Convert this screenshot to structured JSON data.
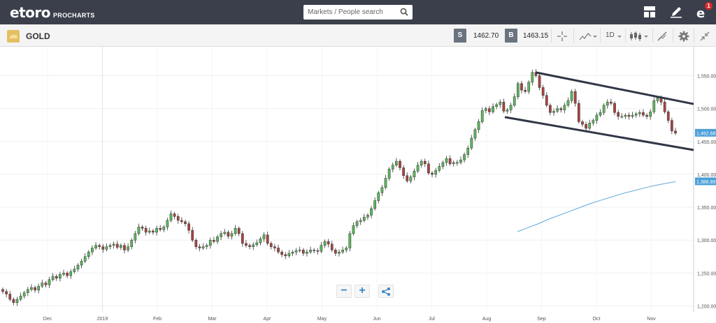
{
  "topbar": {
    "brand": "etoro",
    "product": "PROCHARTS",
    "search_placeholder": "Markets / People search",
    "notification_count": "1",
    "icons": [
      "layout-icon",
      "pencil-icon",
      "profile-icon"
    ]
  },
  "asset": {
    "name": "GOLD",
    "sell_label": "S",
    "sell_price": "1462.70",
    "buy_label": "B",
    "buy_price": "1463.15"
  },
  "toolbar": {
    "timeframe": "1D",
    "icons": [
      "crosshair-icon",
      "compare-icon",
      "timeframe-dropdown",
      "candles-icon",
      "drawing-icon",
      "settings-icon",
      "collapse-icon"
    ]
  },
  "colors": {
    "topbar": "#3a3f4b",
    "bull": "#5cb85c",
    "bear": "#a94442",
    "channel": "#2f3645",
    "sma": "#5fa8dc",
    "price_label": "#4a9fd8"
  },
  "chart_data": {
    "type": "candlestick",
    "title": "",
    "xlabel": "",
    "ylabel": "",
    "ylim": [
      1191,
      1594
    ],
    "x_tick_labels": [
      "Dec",
      "2019",
      "Feb",
      "Mar",
      "Apr",
      "May",
      "Jun",
      "Jul",
      "Aug",
      "Sep",
      "Oct",
      "Nov"
    ],
    "y_tick_labels": [
      "1,550.00",
      "1,500.00",
      "1,450.00",
      "1,400.00",
      "1,350.00",
      "1,300.00",
      "1,250.00",
      "1,200.00"
    ],
    "y_ticks": [
      1550,
      1500,
      1450,
      1400,
      1350,
      1300,
      1250,
      1200
    ],
    "last_price_label": "1,462.68",
    "last_price": 1462.68,
    "sma_label": "1,388.89",
    "sma_value": 1388.89,
    "close_series": [
      1222,
      1218,
      1210,
      1205,
      1210,
      1215,
      1220,
      1225,
      1228,
      1224,
      1230,
      1235,
      1232,
      1240,
      1245,
      1242,
      1248,
      1250,
      1246,
      1252,
      1256,
      1262,
      1268,
      1275,
      1282,
      1288,
      1292,
      1290,
      1286,
      1290,
      1292,
      1294,
      1289,
      1292,
      1285,
      1290,
      1300,
      1310,
      1320,
      1318,
      1312,
      1314,
      1312,
      1318,
      1316,
      1320,
      1330,
      1340,
      1336,
      1330,
      1328,
      1325,
      1315,
      1300,
      1290,
      1288,
      1290,
      1292,
      1300,
      1298,
      1305,
      1310,
      1312,
      1306,
      1310,
      1318,
      1310,
      1295,
      1292,
      1290,
      1293,
      1296,
      1302,
      1308,
      1295,
      1290,
      1288,
      1282,
      1278,
      1276,
      1280,
      1282,
      1284,
      1285,
      1280,
      1282,
      1285,
      1284,
      1283,
      1292,
      1298,
      1294,
      1285,
      1280,
      1282,
      1285,
      1288,
      1310,
      1322,
      1328,
      1330,
      1335,
      1338,
      1348,
      1360,
      1372,
      1380,
      1394,
      1408,
      1414,
      1420,
      1410,
      1398,
      1390,
      1396,
      1405,
      1414,
      1420,
      1416,
      1402,
      1400,
      1406,
      1412,
      1418,
      1424,
      1416,
      1418,
      1418,
      1422,
      1430,
      1440,
      1455,
      1468,
      1480,
      1497,
      1500,
      1495,
      1503,
      1506,
      1510,
      1496,
      1498,
      1505,
      1518,
      1538,
      1528,
      1526,
      1540,
      1555,
      1550,
      1532,
      1520,
      1505,
      1494,
      1496,
      1500,
      1498,
      1505,
      1512,
      1526,
      1508,
      1480,
      1476,
      1470,
      1478,
      1482,
      1490,
      1494,
      1505,
      1510,
      1508,
      1494,
      1488,
      1488,
      1490,
      1488,
      1490,
      1492,
      1494,
      1490,
      1488,
      1495,
      1512,
      1516,
      1510,
      1495,
      1482,
      1466,
      1462.68
    ],
    "sma_series": [
      [
        0,
        1313
      ],
      [
        0.1,
        1319
      ],
      [
        0.2,
        1325
      ],
      [
        0.3,
        1332
      ],
      [
        0.4,
        1338
      ],
      [
        0.5,
        1344
      ],
      [
        0.6,
        1350
      ],
      [
        0.7,
        1356
      ],
      [
        0.8,
        1361
      ],
      [
        0.9,
        1366
      ],
      [
        1.0,
        1371
      ],
      [
        1.1,
        1375
      ],
      [
        1.2,
        1379
      ],
      [
        1.3,
        1383
      ],
      [
        1.4,
        1386
      ],
      [
        1.5,
        1388.89
      ]
    ],
    "channel": {
      "upper": [
        [
          0,
          1555
        ],
        [
          1,
          1507
        ]
      ],
      "lower": [
        [
          0,
          1487
        ],
        [
          1,
          1437
        ]
      ]
    }
  }
}
